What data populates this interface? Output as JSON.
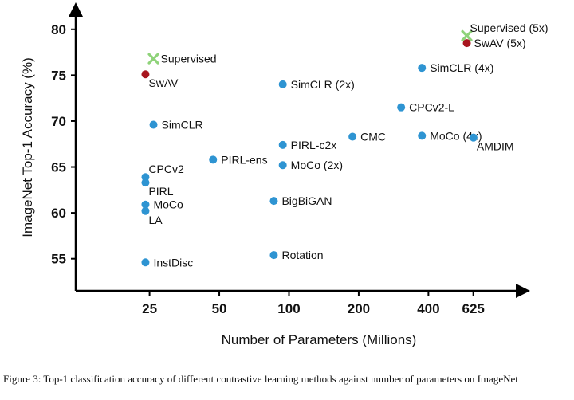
{
  "chart_data": {
    "type": "scatter",
    "xlabel": "Number of Parameters (Millions)",
    "ylabel": "ImageNet Top-1 Accuracy (%)",
    "x_scale": "log",
    "x_ticks": [
      25,
      50,
      100,
      200,
      400,
      625
    ],
    "y_ticks": [
      55,
      60,
      65,
      70,
      75,
      80
    ],
    "xlim": [
      12,
      1100
    ],
    "ylim": [
      51.5,
      82.5
    ],
    "colors": {
      "self_supervised": "#2e94d2",
      "swav": "#a8151e",
      "supervised": "#8fd37a"
    },
    "points": [
      {
        "label": "InstDisc",
        "x": 24,
        "y": 54.6,
        "kind": "self_supervised",
        "anchor": "right"
      },
      {
        "label": "LA",
        "x": 24,
        "y": 60.2,
        "kind": "self_supervised",
        "anchor": "right-below"
      },
      {
        "label": "MoCo",
        "x": 24,
        "y": 60.9,
        "kind": "self_supervised",
        "anchor": "right"
      },
      {
        "label": "PIRL",
        "x": 24,
        "y": 63.3,
        "kind": "self_supervised",
        "anchor": "right-below"
      },
      {
        "label": "CPCv2",
        "x": 24,
        "y": 63.9,
        "kind": "self_supervised",
        "anchor": "right-above"
      },
      {
        "label": "SimCLR",
        "x": 26,
        "y": 69.6,
        "kind": "self_supervised",
        "anchor": "right"
      },
      {
        "label": "SwAV",
        "x": 24,
        "y": 75.1,
        "kind": "swav",
        "anchor": "right-below"
      },
      {
        "label": "Supervised",
        "x": 26,
        "y": 76.8,
        "kind": "supervised",
        "anchor": "right"
      },
      {
        "label": "PIRL-ens",
        "x": 47,
        "y": 65.8,
        "kind": "self_supervised",
        "anchor": "right"
      },
      {
        "label": "Rotation",
        "x": 86,
        "y": 55.4,
        "kind": "self_supervised",
        "anchor": "right"
      },
      {
        "label": "BigBiGAN",
        "x": 86,
        "y": 61.3,
        "kind": "self_supervised",
        "anchor": "right"
      },
      {
        "label": "MoCo (2x)",
        "x": 94,
        "y": 65.2,
        "kind": "self_supervised",
        "anchor": "right"
      },
      {
        "label": "PIRL-c2x",
        "x": 94,
        "y": 67.4,
        "kind": "self_supervised",
        "anchor": "right"
      },
      {
        "label": "SimCLR (2x)",
        "x": 94,
        "y": 74.0,
        "kind": "self_supervised",
        "anchor": "right"
      },
      {
        "label": "CMC",
        "x": 188,
        "y": 68.3,
        "kind": "self_supervised",
        "anchor": "right"
      },
      {
        "label": "CPCv2-L",
        "x": 305,
        "y": 71.5,
        "kind": "self_supervised",
        "anchor": "right"
      },
      {
        "label": "SimCLR (4x)",
        "x": 375,
        "y": 75.8,
        "kind": "self_supervised",
        "anchor": "right"
      },
      {
        "label": "MoCo (4x)",
        "x": 375,
        "y": 68.4,
        "kind": "self_supervised",
        "anchor": "right"
      },
      {
        "label": "AMDIM",
        "x": 626,
        "y": 68.2,
        "kind": "self_supervised",
        "anchor": "right-below"
      },
      {
        "label": "SwAV (5x)",
        "x": 586,
        "y": 78.5,
        "kind": "swav",
        "anchor": "right"
      },
      {
        "label": "Supervised (5x)",
        "x": 586,
        "y": 79.3,
        "kind": "supervised",
        "anchor": "right-above"
      }
    ]
  },
  "caption": "Figure 3: Top-1 classification accuracy of different contrastive learning methods against number of parameters on ImageNet"
}
